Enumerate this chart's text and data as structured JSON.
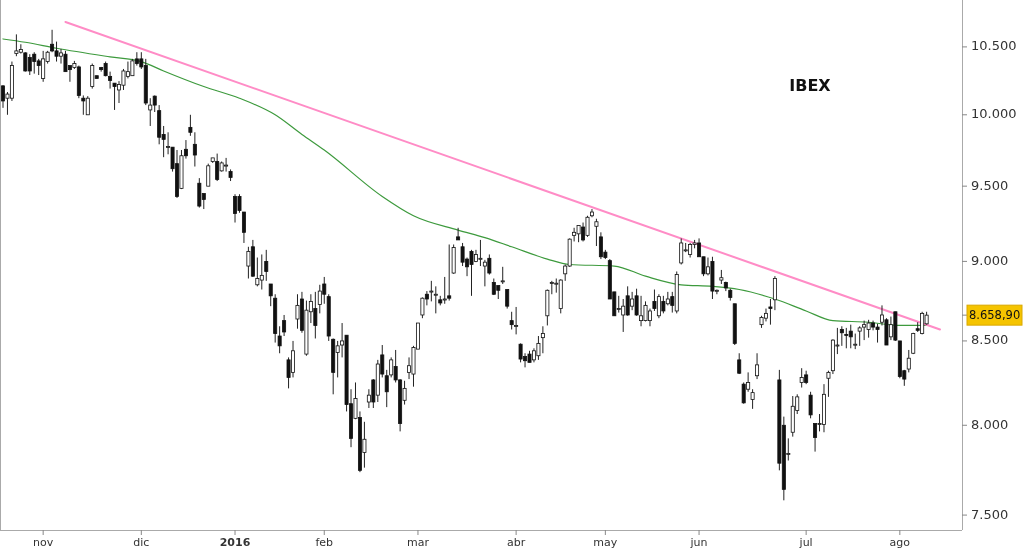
{
  "chart_data": {
    "type": "candlestick",
    "title": "IBEX",
    "log": true,
    "ylim": [
      7420,
      10860
    ],
    "yticks": [
      {
        "value": 7500,
        "label": "7.500"
      },
      {
        "value": 8000,
        "label": "8.000"
      },
      {
        "value": 8500,
        "label": "8.500"
      },
      {
        "value": 9000,
        "label": "9.000"
      },
      {
        "value": 9500,
        "label": "9.500"
      },
      {
        "value": 10000,
        "label": "10.000"
      },
      {
        "value": 10500,
        "label": "10.500"
      }
    ],
    "categories": [
      null,
      null,
      null,
      null,
      null,
      null,
      null,
      null,
      null,
      "nov",
      null,
      null,
      null,
      null,
      null,
      null,
      null,
      null,
      null,
      null,
      null,
      null,
      null,
      null,
      null,
      null,
      null,
      null,
      null,
      null,
      null,
      "dic",
      null,
      null,
      null,
      null,
      null,
      null,
      null,
      null,
      null,
      null,
      null,
      null,
      null,
      null,
      null,
      null,
      null,
      null,
      null,
      null,
      "2016",
      null,
      null,
      null,
      null,
      null,
      null,
      null,
      null,
      null,
      null,
      null,
      null,
      null,
      null,
      null,
      null,
      null,
      null,
      null,
      "feb",
      null,
      null,
      null,
      null,
      null,
      null,
      null,
      null,
      null,
      null,
      null,
      null,
      null,
      null,
      null,
      null,
      null,
      null,
      null,
      null,
      "mar",
      null,
      null,
      null,
      null,
      null,
      null,
      null,
      null,
      null,
      null,
      null,
      null,
      null,
      null,
      null,
      null,
      null,
      null,
      null,
      null,
      null,
      "abr",
      null,
      null,
      null,
      null,
      null,
      null,
      null,
      null,
      null,
      null,
      null,
      null,
      null,
      null,
      null,
      null,
      null,
      null,
      null,
      "may",
      null,
      null,
      null,
      null,
      null,
      null,
      null,
      null,
      null,
      null,
      null,
      null,
      null,
      null,
      null,
      null,
      null,
      null,
      null,
      null,
      "jun",
      null,
      null,
      null,
      null,
      null,
      null,
      null,
      null,
      null,
      null,
      null,
      null,
      null,
      null,
      null,
      null,
      null,
      null,
      null,
      null,
      null,
      null,
      null,
      "jul",
      null,
      null,
      null,
      null,
      null,
      null,
      null,
      null,
      null,
      null,
      null,
      null,
      null,
      null,
      null,
      null,
      null,
      null,
      null,
      null,
      "ago",
      null,
      null,
      null,
      null,
      null,
      null,
      null,
      null,
      null
    ],
    "ohlc": [
      [
        10210,
        10215,
        10050,
        10100
      ],
      [
        10120,
        10165,
        10000,
        10150
      ],
      [
        10120,
        10390,
        10100,
        10360
      ],
      [
        10450,
        10595,
        10430,
        10470
      ],
      [
        10460,
        10520,
        10450,
        10480
      ],
      [
        10455,
        10460,
        10315,
        10320
      ],
      [
        10420,
        10445,
        10290,
        10320
      ],
      [
        10445,
        10460,
        10300,
        10390
      ],
      [
        10395,
        10410,
        10290,
        10360
      ],
      [
        10265,
        10470,
        10240,
        10410
      ],
      [
        10390,
        10470,
        10375,
        10460
      ],
      [
        10520,
        10630,
        10460,
        10470
      ],
      [
        10470,
        10540,
        10390,
        10430
      ],
      [
        10430,
        10485,
        10375,
        10455
      ],
      [
        10445,
        10470,
        10315,
        10315
      ],
      [
        10360,
        10360,
        10240,
        10330
      ],
      [
        10345,
        10395,
        10335,
        10375
      ],
      [
        10350,
        10360,
        10120,
        10140
      ],
      [
        10120,
        10140,
        10000,
        10100
      ],
      [
        10000,
        10135,
        10000,
        10120
      ],
      [
        10205,
        10375,
        10190,
        10360
      ],
      [
        10285,
        10285,
        10265,
        10265
      ],
      [
        10345,
        10350,
        10315,
        10330
      ],
      [
        10375,
        10390,
        10280,
        10285
      ],
      [
        10280,
        10315,
        10190,
        10250
      ],
      [
        10230,
        10230,
        10035,
        10205
      ],
      [
        10180,
        10245,
        10085,
        10220
      ],
      [
        10215,
        10335,
        10180,
        10320
      ],
      [
        10280,
        10390,
        10265,
        10315
      ],
      [
        10285,
        10410,
        10285,
        10395
      ],
      [
        10410,
        10460,
        10360,
        10375
      ],
      [
        10410,
        10460,
        10335,
        10350
      ],
      [
        10360,
        10410,
        10070,
        10085
      ],
      [
        10035,
        10120,
        9920,
        10070
      ],
      [
        10135,
        10140,
        10020,
        10070
      ],
      [
        10030,
        10070,
        9790,
        9840
      ],
      [
        9860,
        9920,
        9700,
        9825
      ],
      [
        9775,
        9875,
        9720,
        9775
      ],
      [
        9770,
        9770,
        9600,
        9620
      ],
      [
        9655,
        9750,
        9420,
        9430
      ],
      [
        9485,
        9750,
        9480,
        9710
      ],
      [
        9755,
        9820,
        9690,
        9710
      ],
      [
        9910,
        10000,
        9850,
        9875
      ],
      [
        9790,
        9875,
        9635,
        9715
      ],
      [
        9520,
        9555,
        9355,
        9365
      ],
      [
        9450,
        9450,
        9345,
        9410
      ],
      [
        9500,
        9655,
        9500,
        9640
      ],
      [
        9670,
        9695,
        9660,
        9695
      ],
      [
        9670,
        9725,
        9535,
        9545
      ],
      [
        9605,
        9670,
        9600,
        9660
      ],
      [
        9645,
        9695,
        9600,
        9645
      ],
      [
        9600,
        9615,
        9535,
        9560
      ],
      [
        9430,
        9445,
        9255,
        9315
      ],
      [
        9430,
        9445,
        9320,
        9335
      ],
      [
        9325,
        9325,
        9120,
        9190
      ],
      [
        8970,
        9095,
        8890,
        9065
      ],
      [
        9095,
        9140,
        8900,
        8905
      ],
      [
        8850,
        9025,
        8840,
        8890
      ],
      [
        8880,
        9045,
        8820,
        8910
      ],
      [
        9000,
        9075,
        8875,
        8935
      ],
      [
        8855,
        8855,
        8715,
        8780
      ],
      [
        8765,
        8790,
        8490,
        8545
      ],
      [
        8530,
        8590,
        8425,
        8470
      ],
      [
        8625,
        8660,
        8530,
        8555
      ],
      [
        8385,
        8400,
        8215,
        8280
      ],
      [
        8310,
        8500,
        8280,
        8440
      ],
      [
        8635,
        8790,
        8575,
        8720
      ],
      [
        8760,
        8805,
        8550,
        8565
      ],
      [
        8420,
        8750,
        8410,
        8690
      ],
      [
        8680,
        8790,
        8610,
        8745
      ],
      [
        8700,
        8805,
        8515,
        8595
      ],
      [
        8725,
        8850,
        8670,
        8810
      ],
      [
        8855,
        8900,
        8730,
        8790
      ],
      [
        8775,
        8790,
        8500,
        8530
      ],
      [
        8510,
        8515,
        8180,
        8310
      ],
      [
        8430,
        8500,
        8280,
        8470
      ],
      [
        8475,
        8610,
        8400,
        8500
      ],
      [
        8535,
        8535,
        8080,
        8120
      ],
      [
        8125,
        8210,
        7875,
        7925
      ],
      [
        8040,
        8250,
        8035,
        8155
      ],
      [
        8045,
        8080,
        7735,
        7745
      ],
      [
        7845,
        8020,
        7760,
        7920
      ],
      [
        8135,
        8210,
        8100,
        8175
      ],
      [
        8265,
        8270,
        8100,
        8135
      ],
      [
        8175,
        8385,
        8135,
        8360
      ],
      [
        8415,
        8475,
        8280,
        8300
      ],
      [
        8290,
        8325,
        8105,
        8195
      ],
      [
        8295,
        8400,
        8280,
        8385
      ],
      [
        8345,
        8445,
        8250,
        8265
      ],
      [
        8265,
        8270,
        7965,
        8010
      ],
      [
        8145,
        8260,
        8120,
        8215
      ],
      [
        8310,
        8400,
        8270,
        8350
      ],
      [
        8300,
        8470,
        8225,
        8460
      ],
      [
        8450,
        8610,
        8450,
        8610
      ],
      [
        8660,
        8770,
        8640,
        8765
      ],
      [
        8790,
        8810,
        8720,
        8760
      ],
      [
        8810,
        8875,
        8745,
        8810
      ],
      [
        8790,
        8840,
        8670,
        8790
      ],
      [
        8755,
        8780,
        8720,
        8735
      ],
      [
        8760,
        8900,
        8730,
        8760
      ],
      [
        8780,
        9110,
        8750,
        8765
      ],
      [
        8925,
        9110,
        8920,
        9090
      ],
      [
        9160,
        9220,
        9140,
        9140
      ],
      [
        9095,
        9120,
        8970,
        8995
      ],
      [
        9015,
        9025,
        8905,
        8965
      ],
      [
        9065,
        9075,
        8780,
        8980
      ],
      [
        9000,
        9075,
        8995,
        9045
      ],
      [
        9020,
        9140,
        8970,
        9020
      ],
      [
        8970,
        9010,
        8840,
        8995
      ],
      [
        9020,
        9045,
        8915,
        8925
      ],
      [
        8865,
        8890,
        8785,
        8790
      ],
      [
        8845,
        8845,
        8760,
        8815
      ],
      [
        8875,
        8965,
        8855,
        8875
      ],
      [
        8820,
        8820,
        8700,
        8715
      ],
      [
        8625,
        8680,
        8570,
        8600
      ],
      [
        8590,
        8710,
        8540,
        8595
      ],
      [
        8480,
        8485,
        8370,
        8390
      ],
      [
        8405,
        8425,
        8340,
        8380
      ],
      [
        8420,
        8440,
        8370,
        8370
      ],
      [
        8385,
        8455,
        8370,
        8440
      ],
      [
        8410,
        8530,
        8385,
        8485
      ],
      [
        8520,
        8590,
        8425,
        8545
      ],
      [
        8655,
        8820,
        8595,
        8815
      ],
      [
        8865,
        8875,
        8790,
        8865
      ],
      [
        8860,
        8890,
        8800,
        8860
      ],
      [
        8700,
        8885,
        8670,
        8880
      ],
      [
        8920,
        8980,
        8875,
        8970
      ],
      [
        8970,
        9150,
        8965,
        9145
      ],
      [
        9170,
        9220,
        9130,
        9190
      ],
      [
        9180,
        9235,
        9125,
        9235
      ],
      [
        9225,
        9255,
        9130,
        9140
      ],
      [
        9170,
        9300,
        9160,
        9290
      ],
      [
        9300,
        9345,
        9290,
        9325
      ],
      [
        9230,
        9280,
        9100,
        9260
      ],
      [
        9160,
        9190,
        9015,
        9030
      ],
      [
        9060,
        9075,
        9015,
        9025
      ],
      [
        9005,
        9015,
        8760,
        8760
      ],
      [
        8805,
        8805,
        8655,
        8655
      ],
      [
        8700,
        8780,
        8675,
        8700
      ],
      [
        8660,
        8760,
        8555,
        8715
      ],
      [
        8780,
        8840,
        8655,
        8660
      ],
      [
        8715,
        8805,
        8690,
        8760
      ],
      [
        8780,
        8825,
        8655,
        8660
      ],
      [
        8625,
        8780,
        8590,
        8655
      ],
      [
        8625,
        8745,
        8620,
        8720
      ],
      [
        8625,
        8700,
        8590,
        8685
      ],
      [
        8745,
        8820,
        8685,
        8700
      ],
      [
        8655,
        8790,
        8640,
        8775
      ],
      [
        8745,
        8780,
        8670,
        8685
      ],
      [
        8730,
        8805,
        8720,
        8760
      ],
      [
        8775,
        8805,
        8675,
        8720
      ],
      [
        8685,
        8935,
        8670,
        8915
      ],
      [
        8990,
        9150,
        8980,
        9120
      ],
      [
        9075,
        9120,
        9060,
        9075
      ],
      [
        9045,
        9120,
        9025,
        9110
      ],
      [
        9110,
        9140,
        9085,
        9120
      ],
      [
        9120,
        9150,
        9030,
        9030
      ],
      [
        9030,
        9030,
        8905,
        8920
      ],
      [
        8920,
        9025,
        8910,
        8965
      ],
      [
        9000,
        9030,
        8760,
        8810
      ],
      [
        8815,
        8820,
        8790,
        8815
      ],
      [
        8880,
        8945,
        8855,
        8895
      ],
      [
        8865,
        8870,
        8810,
        8830
      ],
      [
        8815,
        8825,
        8750,
        8770
      ],
      [
        8730,
        8730,
        8475,
        8485
      ],
      [
        8385,
        8425,
        8300,
        8305
      ],
      [
        8240,
        8250,
        8125,
        8130
      ],
      [
        8210,
        8310,
        8195,
        8250
      ],
      [
        8150,
        8210,
        8095,
        8190
      ],
      [
        8290,
        8425,
        8270,
        8355
      ],
      [
        8600,
        8655,
        8580,
        8645
      ],
      [
        8640,
        8700,
        8620,
        8670
      ],
      [
        8710,
        8760,
        8600,
        8700
      ],
      [
        8755,
        8905,
        8690,
        8890
      ],
      [
        8265,
        8325,
        7745,
        7785
      ],
      [
        8000,
        8050,
        7580,
        7640
      ],
      [
        7840,
        7925,
        7800,
        7840
      ],
      [
        7960,
        8170,
        7935,
        8110
      ],
      [
        8085,
        8180,
        8065,
        8165
      ],
      [
        8250,
        8335,
        8220,
        8280
      ],
      [
        8295,
        8320,
        8240,
        8250
      ],
      [
        8175,
        8195,
        8040,
        8060
      ],
      [
        8010,
        8010,
        7850,
        7930
      ],
      [
        8010,
        8065,
        7965,
        8010
      ],
      [
        8005,
        8240,
        7960,
        8180
      ],
      [
        8275,
        8320,
        8165,
        8310
      ],
      [
        8320,
        8510,
        8300,
        8505
      ],
      [
        8475,
        8580,
        8420,
        8475
      ],
      [
        8570,
        8590,
        8470,
        8550
      ],
      [
        8540,
        8580,
        8455,
        8535
      ],
      [
        8560,
        8600,
        8455,
        8525
      ],
      [
        8480,
        8545,
        8450,
        8480
      ],
      [
        8560,
        8590,
        8470,
        8580
      ],
      [
        8585,
        8625,
        8505,
        8600
      ],
      [
        8570,
        8630,
        8520,
        8610
      ],
      [
        8610,
        8625,
        8565,
        8585
      ],
      [
        8585,
        8605,
        8490,
        8570
      ],
      [
        8615,
        8720,
        8595,
        8660
      ],
      [
        8630,
        8640,
        8475,
        8475
      ],
      [
        8525,
        8650,
        8505,
        8600
      ],
      [
        8680,
        8680,
        8500,
        8505
      ],
      [
        8500,
        8500,
        8275,
        8285
      ],
      [
        8320,
        8325,
        8230,
        8270
      ],
      [
        8330,
        8445,
        8310,
        8395
      ],
      [
        8425,
        8550,
        8420,
        8545
      ],
      [
        8575,
        8615,
        8555,
        8565
      ],
      [
        8545,
        8680,
        8540,
        8670
      ],
      [
        8605,
        8680,
        8600,
        8658.9
      ],
      null,
      null,
      null
    ],
    "series": [
      {
        "type": "line",
        "color": "#3d9a3d",
        "values": [
          10560,
          null,
          null,
          null,
          null,
          10535,
          null,
          null,
          null,
          null,
          null,
          null,
          10490,
          null,
          null,
          null,
          null,
          null,
          null,
          null,
          null,
          null,
          null,
          null,
          10425,
          null,
          null,
          null,
          null,
          null,
          null,
          10390,
          null,
          null,
          null,
          null,
          10320,
          null,
          null,
          null,
          null,
          null,
          null,
          null,
          null,
          10205,
          null,
          null,
          null,
          null,
          null,
          null,
          null,
          10120,
          null,
          null,
          null,
          null,
          null,
          null,
          null,
          10000,
          null,
          null,
          null,
          null,
          null,
          9860,
          null,
          null,
          null,
          null,
          9750,
          null,
          null,
          null,
          null,
          null,
          null,
          null,
          null,
          null,
          null,
          null,
          null,
          9430,
          null,
          null,
          null,
          null,
          null,
          null,
          9300,
          null,
          null,
          null,
          null,
          null,
          null,
          null,
          null,
          null,
          9205,
          null,
          null,
          null,
          null,
          null,
          9155,
          null,
          null,
          null,
          null,
          null,
          9095,
          null,
          null,
          null,
          null,
          null,
          null,
          null,
          9015,
          null,
          null,
          null,
          null,
          8980,
          null,
          null,
          null,
          null,
          null,
          null,
          null,
          null,
          null,
          8970,
          null,
          null,
          null,
          null,
          null,
          null,
          8905,
          null,
          null,
          null,
          null,
          null,
          null,
          null,
          8850,
          null,
          null,
          null,
          null,
          null,
          null,
          8840,
          null,
          null,
          null,
          null,
          null,
          8820,
          null,
          null,
          null,
          null,
          null,
          null,
          null,
          8760,
          null,
          null,
          null,
          null,
          null,
          null,
          8685,
          null,
          null,
          null,
          null,
          null,
          8625,
          null,
          null,
          null,
          null,
          null,
          null,
          null,
          8615,
          null,
          null,
          null,
          null,
          null,
          null,
          8595,
          null,
          null,
          null,
          null,
          null,
          8595,
          null,
          null,
          null
        ]
      },
      {
        "type": "line",
        "color": "#ff8cc6",
        "values": [
          null,
          null,
          null,
          null,
          null,
          null,
          null,
          null,
          null,
          null,
          null,
          null,
          null,
          null,
          10690,
          null,
          null,
          null,
          null,
          null,
          null,
          null,
          null,
          null,
          null,
          null,
          null,
          null,
          null,
          null,
          null,
          null,
          null,
          null,
          null,
          null,
          null,
          null,
          null,
          null,
          null,
          null,
          null,
          null,
          null,
          null,
          null,
          null,
          null,
          null,
          null,
          null,
          null,
          null,
          null,
          null,
          null,
          null,
          null,
          null,
          null,
          null,
          null,
          null,
          null,
          null,
          null,
          null,
          null,
          null,
          null,
          null,
          null,
          null,
          null,
          null,
          null,
          null,
          null,
          null,
          null,
          null,
          null,
          null,
          null,
          null,
          null,
          null,
          null,
          null,
          null,
          null,
          null,
          null,
          null,
          null,
          null,
          null,
          null,
          null,
          null,
          null,
          null,
          null,
          null,
          null,
          null,
          null,
          null,
          null,
          null,
          null,
          null,
          null,
          null,
          null,
          null,
          null,
          null,
          null,
          null,
          null,
          null,
          null,
          null,
          null,
          null,
          null,
          null,
          null,
          null,
          null,
          null,
          null,
          null,
          null,
          null,
          null,
          null,
          null,
          null,
          null,
          null,
          null,
          null,
          null,
          null,
          null,
          null,
          null,
          null,
          null,
          null,
          null,
          null,
          null,
          null,
          null,
          null,
          null,
          null,
          null,
          null,
          null,
          null,
          null,
          null,
          null,
          null,
          null,
          null,
          null,
          null,
          null,
          null,
          null,
          null,
          null,
          null,
          null,
          null,
          null,
          null,
          null,
          null,
          null,
          null,
          null,
          null,
          null,
          null,
          null,
          null,
          null,
          null,
          null,
          null,
          null,
          null,
          null,
          null,
          null,
          null,
          null,
          null,
          null,
          null,
          null,
          null,
          null,
          8570
        ]
      }
    ],
    "annotations": [
      "8.658,90"
    ]
  }
}
